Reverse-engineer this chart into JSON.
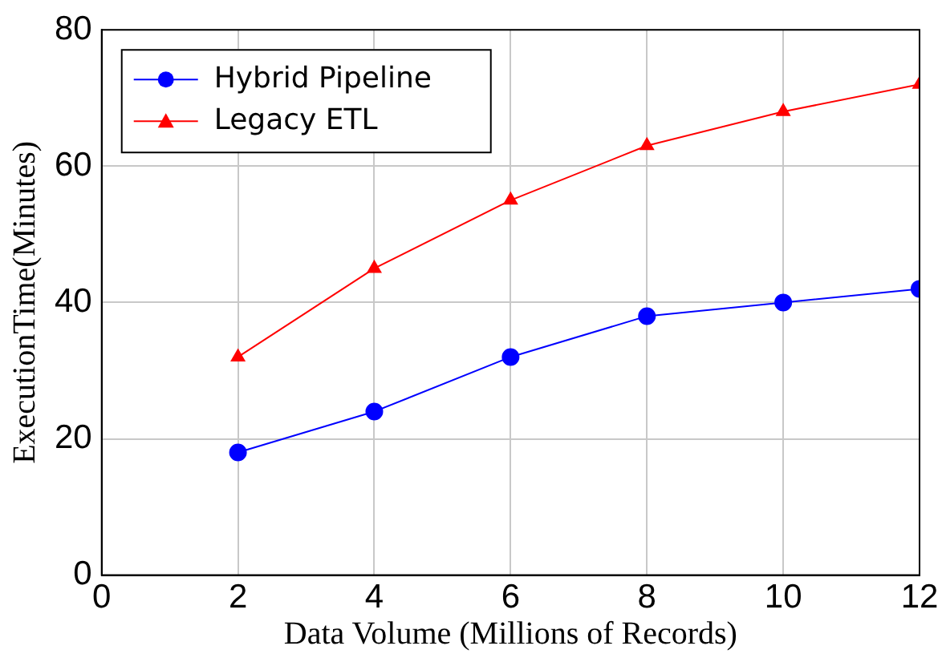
{
  "chart_data": {
    "type": "line",
    "xlabel": "Data Volume (Millions of Records)",
    "ylabel": "ExecutionTime(Minutes)",
    "x": [
      2,
      4,
      6,
      8,
      10,
      12
    ],
    "series": [
      {
        "name": "Hybrid Pipeline",
        "color": "#0000ff",
        "marker": "circle",
        "values": [
          18,
          24,
          32,
          38,
          40,
          42
        ]
      },
      {
        "name": "Legacy ETL",
        "color": "#ff0000",
        "marker": "triangle",
        "values": [
          32,
          45,
          55,
          63,
          68,
          72
        ]
      }
    ],
    "xlim": [
      0,
      12
    ],
    "xticks": [
      0,
      2,
      4,
      6,
      8,
      10,
      12
    ],
    "ylim": [
      0,
      80
    ],
    "yticks": [
      0,
      20,
      40,
      60,
      80
    ],
    "grid": true,
    "legend": "top left",
    "line_style": "solid"
  }
}
